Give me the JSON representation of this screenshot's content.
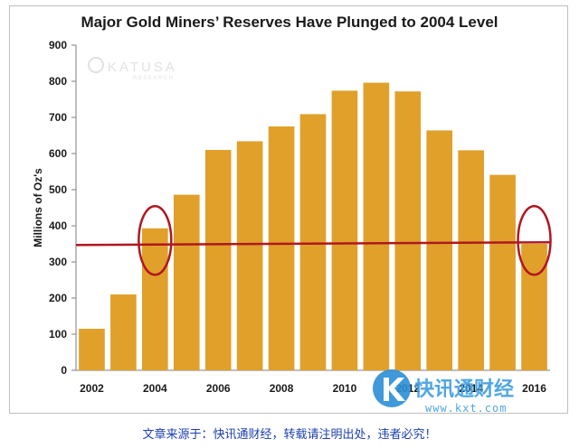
{
  "chart_data": {
    "type": "bar",
    "title": "Major Gold Miners’ Reserves Have Plunged to 2004 Level",
    "ylabel": "Millions of Oz's",
    "xlabel": "",
    "ylim": [
      0,
      900
    ],
    "yticks": [
      0,
      100,
      200,
      300,
      400,
      500,
      600,
      700,
      800,
      900
    ],
    "categories": [
      "2002",
      "2003",
      "2004",
      "2005",
      "2006",
      "2007",
      "2008",
      "2009",
      "2010",
      "2011",
      "2012",
      "2013",
      "2014",
      "2015",
      "2016"
    ],
    "xtick_labels": [
      "2002",
      "",
      "2004",
      "",
      "2006",
      "",
      "2008",
      "",
      "2010",
      "",
      "2012",
      "",
      "2014",
      "",
      "2016"
    ],
    "values": [
      115,
      210,
      393,
      486,
      610,
      634,
      675,
      709,
      774,
      796,
      772,
      664,
      609,
      541,
      350
    ],
    "bar_color": "#E0A02A",
    "reference_line": {
      "value": 352,
      "color": "#B0171F"
    },
    "highlight_circles": [
      "2004",
      "2016"
    ],
    "grid": false,
    "legend": "none"
  },
  "watermarks": {
    "katusa_name": "KATUSA",
    "katusa_sub": "RESEARCH",
    "kxt_name": "快讯通财经",
    "kxt_url": "www.kxt.com"
  },
  "footer": "文章来源于：快讯通财经，转载请注明出处，违者必究！"
}
